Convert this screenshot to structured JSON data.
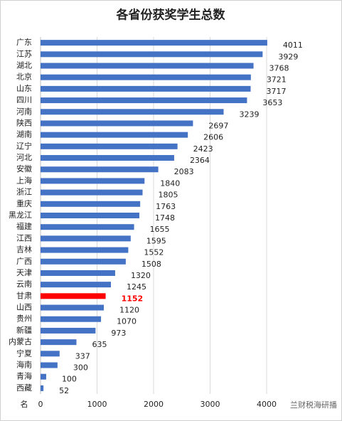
{
  "chart_data": {
    "type": "barh",
    "title": "各省份获奖学生总数",
    "y_label": "名",
    "categories": [
      "广东",
      "江苏",
      "湖北",
      "北京",
      "山东",
      "四川",
      "河南",
      "陕西",
      "湖南",
      "辽宁",
      "河北",
      "安徽",
      "上海",
      "浙江",
      "重庆",
      "黑龙江",
      "福建",
      "江西",
      "吉林",
      "广西",
      "天津",
      "云南",
      "甘肃",
      "山西",
      "贵州",
      "新疆",
      "内蒙古",
      "宁夏",
      "海南",
      "青海",
      "西藏"
    ],
    "values": [
      4011,
      3929,
      3768,
      3721,
      3717,
      3653,
      3239,
      2697,
      2606,
      2423,
      2364,
      2083,
      1840,
      1805,
      1763,
      1748,
      1655,
      1595,
      1552,
      1508,
      1320,
      1245,
      1152,
      1120,
      1070,
      973,
      635,
      337,
      300,
      100,
      52
    ],
    "color": "#4472c4",
    "highlight": "甘肃",
    "highlight_color": "#ff0000",
    "xlim": [
      0,
      4000
    ],
    "xticks": [
      0,
      1000,
      2000,
      3000,
      4000
    ],
    "grid": true,
    "watermark": "兰财税海研播"
  }
}
